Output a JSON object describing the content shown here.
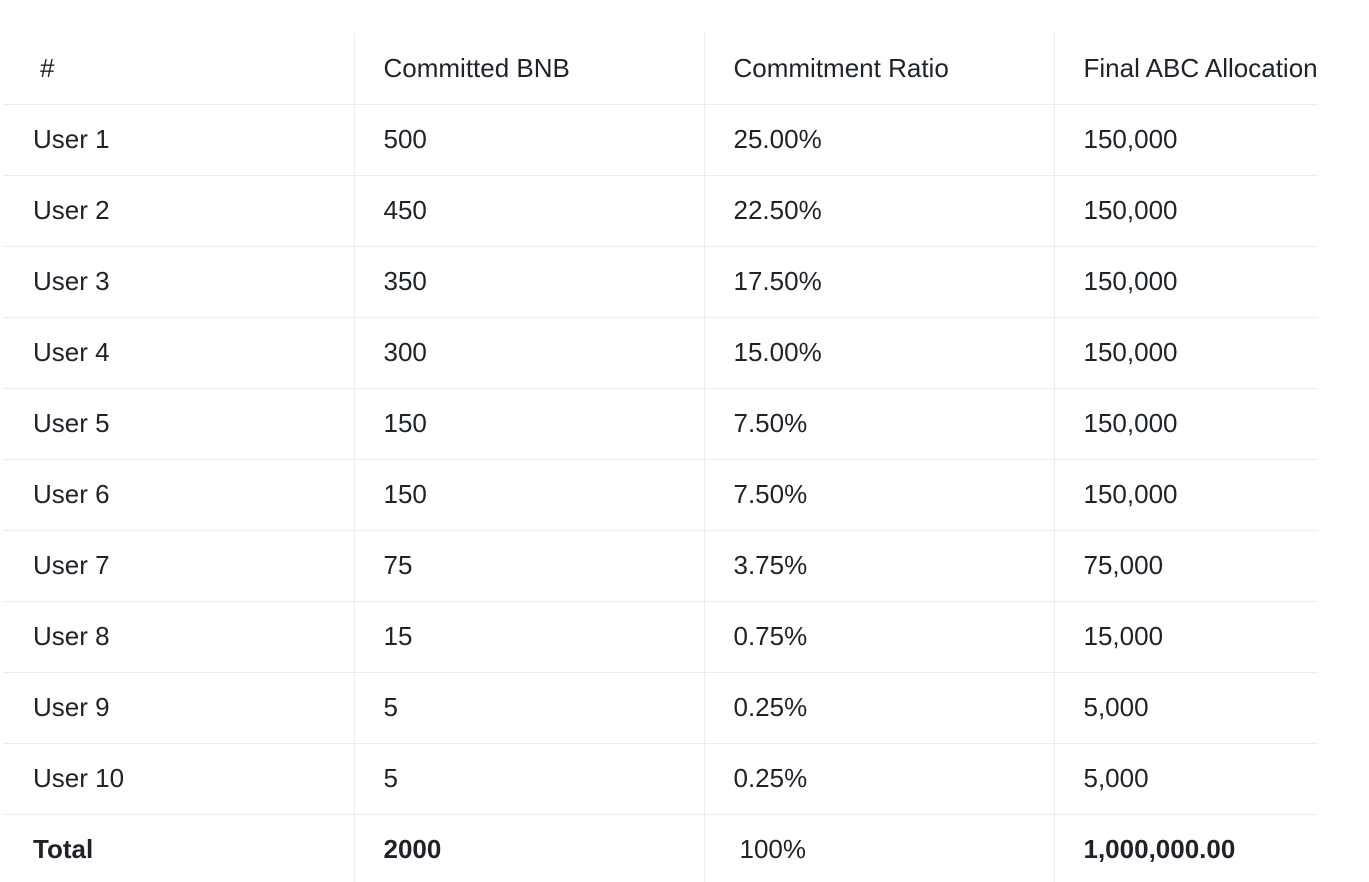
{
  "table": {
    "headers": [
      "#",
      "Committed BNB",
      "Commitment Ratio",
      "Final ABC Allocation"
    ],
    "rows": [
      [
        "User 1",
        "500",
        "25.00%",
        "150,000"
      ],
      [
        "User 2",
        "450",
        "22.50%",
        "150,000"
      ],
      [
        "User 3",
        "350",
        "17.50%",
        "150,000"
      ],
      [
        "User 4",
        "300",
        "15.00%",
        "150,000"
      ],
      [
        "User 5",
        "150",
        "7.50%",
        "150,000"
      ],
      [
        "User 6",
        "150",
        "7.50%",
        "150,000"
      ],
      [
        "User 7",
        "75",
        "3.75%",
        "75,000"
      ],
      [
        "User 8",
        "15",
        "0.75%",
        "15,000"
      ],
      [
        "User 9",
        "5",
        "0.25%",
        "5,000"
      ],
      [
        "User 10",
        "5",
        "0.25%",
        "5,000"
      ]
    ],
    "total": [
      "Total",
      "2000",
      "100%",
      "1,000,000.00"
    ]
  }
}
